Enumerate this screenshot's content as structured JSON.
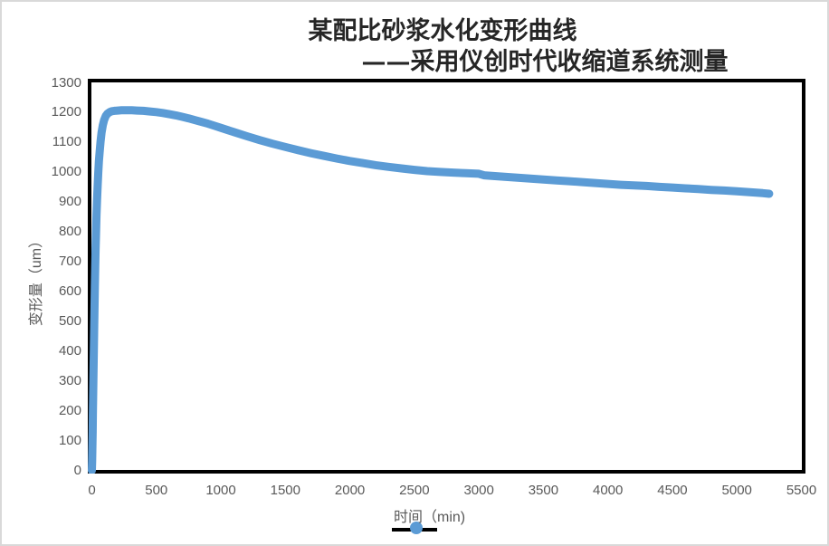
{
  "chart": {
    "title_line1": "某配比砂浆水化变形曲线",
    "title_line2": "——采用仪创时代收缩道系统测量",
    "ylabel": "变形量（um）",
    "xlabel": "时间（min)",
    "colors": {
      "curve": "#5b9bd5",
      "legend_line": "#000000",
      "plot_border": "#000000",
      "tick_text": "#595959",
      "title_text": "#262626",
      "frame_border": "#d9d9d9"
    },
    "legend_sample": "black-line-with-blue-circle-marker"
  },
  "chart_data": {
    "type": "line",
    "title": "某配比砂浆水化变形曲线 ——采用仪创时代收缩道系统测量",
    "xlabel": "时间（min)",
    "ylabel": "变形量（um）",
    "xlim": [
      0,
      5500
    ],
    "ylim": [
      0,
      1300
    ],
    "x_ticks": [
      0,
      500,
      1000,
      1500,
      2000,
      2500,
      3000,
      3500,
      4000,
      4500,
      5000,
      5500
    ],
    "y_ticks": [
      0,
      100,
      200,
      300,
      400,
      500,
      600,
      700,
      800,
      900,
      1000,
      1100,
      1200,
      1300
    ],
    "grid": false,
    "legend_position": "bottom",
    "series": [
      {
        "marker_color": "#5b9bd5",
        "line_color": "#000000",
        "points": [
          [
            0,
            0
          ],
          [
            2,
            30
          ],
          [
            4,
            80
          ],
          [
            6,
            130
          ],
          [
            8,
            185
          ],
          [
            10,
            245
          ],
          [
            12,
            305
          ],
          [
            14,
            365
          ],
          [
            16,
            425
          ],
          [
            18,
            485
          ],
          [
            20,
            540
          ],
          [
            23,
            615
          ],
          [
            26,
            680
          ],
          [
            29,
            740
          ],
          [
            32,
            795
          ],
          [
            36,
            855
          ],
          [
            40,
            905
          ],
          [
            45,
            955
          ],
          [
            50,
            1000
          ],
          [
            55,
            1038
          ],
          [
            60,
            1068
          ],
          [
            67,
            1103
          ],
          [
            75,
            1133
          ],
          [
            85,
            1158
          ],
          [
            95,
            1175
          ],
          [
            108,
            1189
          ],
          [
            122,
            1197
          ],
          [
            138,
            1202
          ],
          [
            155,
            1205
          ],
          [
            175,
            1206
          ],
          [
            200,
            1207
          ],
          [
            230,
            1208
          ],
          [
            270,
            1208
          ],
          [
            310,
            1208
          ],
          [
            350,
            1207
          ],
          [
            400,
            1206
          ],
          [
            450,
            1204
          ],
          [
            500,
            1202
          ],
          [
            550,
            1199
          ],
          [
            600,
            1195
          ],
          [
            650,
            1191
          ],
          [
            700,
            1186
          ],
          [
            750,
            1181
          ],
          [
            800,
            1175
          ],
          [
            850,
            1169
          ],
          [
            900,
            1163
          ],
          [
            950,
            1156
          ],
          [
            1000,
            1149
          ],
          [
            1100,
            1135
          ],
          [
            1200,
            1121
          ],
          [
            1300,
            1108
          ],
          [
            1400,
            1096
          ],
          [
            1500,
            1085
          ],
          [
            1600,
            1074
          ],
          [
            1700,
            1064
          ],
          [
            1800,
            1055
          ],
          [
            1900,
            1046
          ],
          [
            2000,
            1038
          ],
          [
            2100,
            1031
          ],
          [
            2200,
            1024
          ],
          [
            2300,
            1018
          ],
          [
            2400,
            1013
          ],
          [
            2500,
            1008
          ],
          [
            2600,
            1004
          ],
          [
            2700,
            1001
          ],
          [
            2800,
            999
          ],
          [
            2900,
            997
          ],
          [
            3000,
            995
          ],
          [
            3040,
            990
          ],
          [
            3100,
            988
          ],
          [
            3200,
            985
          ],
          [
            3300,
            982
          ],
          [
            3400,
            979
          ],
          [
            3500,
            976
          ],
          [
            3600,
            973
          ],
          [
            3700,
            970
          ],
          [
            3800,
            967
          ],
          [
            3900,
            964
          ],
          [
            4000,
            961
          ],
          [
            4100,
            958
          ],
          [
            4200,
            956
          ],
          [
            4300,
            954
          ],
          [
            4400,
            951
          ],
          [
            4500,
            949
          ],
          [
            4600,
            946
          ],
          [
            4700,
            944
          ],
          [
            4800,
            941
          ],
          [
            4900,
            939
          ],
          [
            5000,
            936
          ],
          [
            5100,
            933
          ],
          [
            5200,
            930
          ],
          [
            5250,
            928
          ]
        ]
      }
    ]
  }
}
